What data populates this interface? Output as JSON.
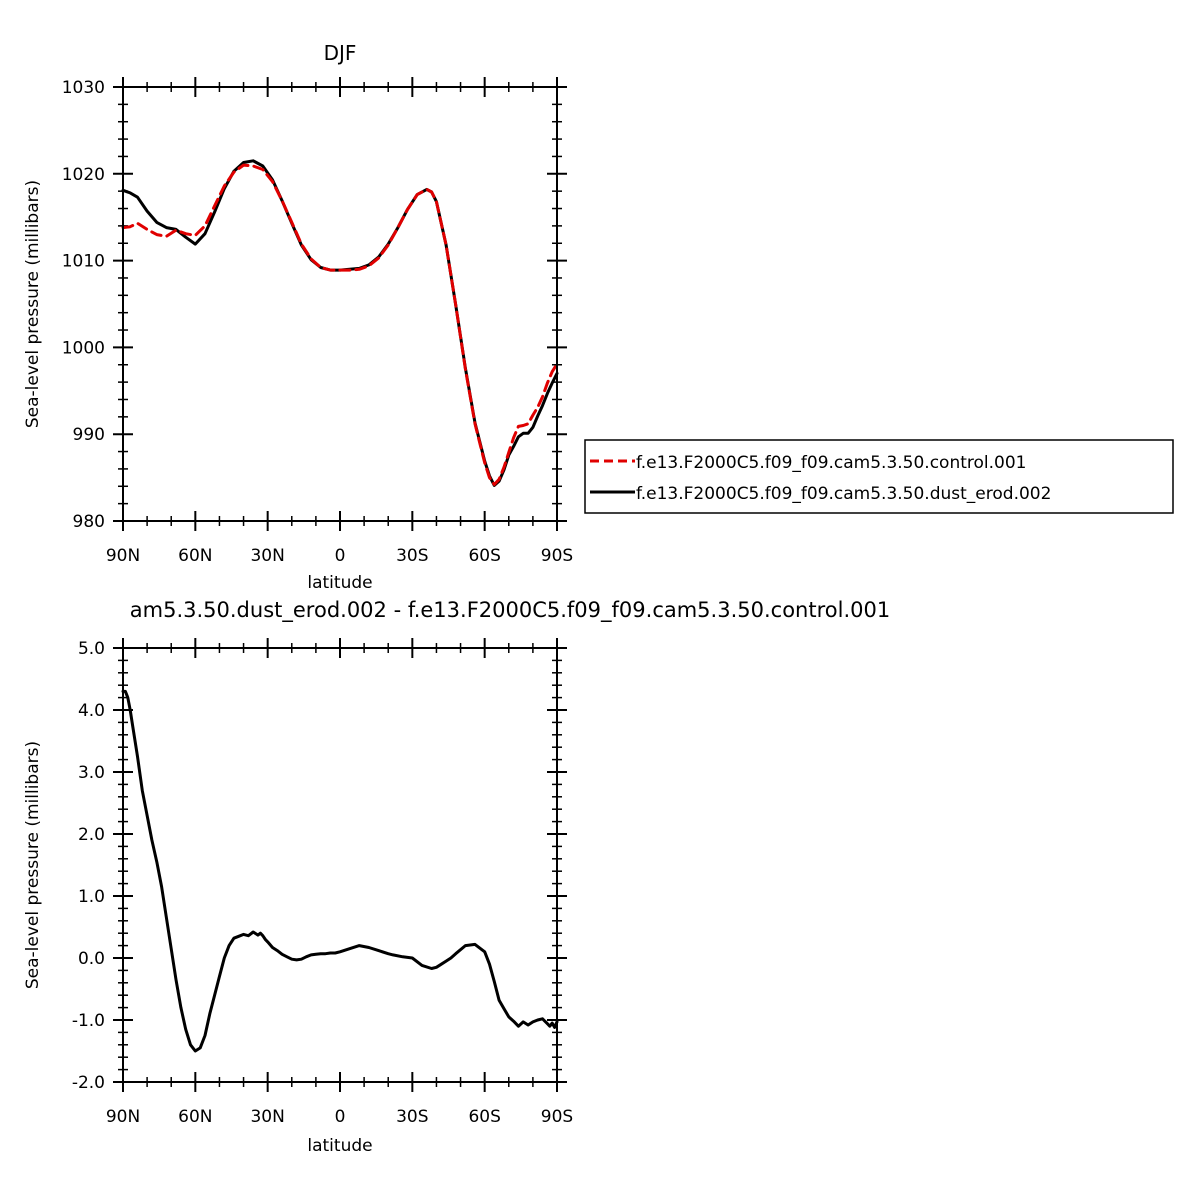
{
  "chart_data": [
    {
      "type": "line",
      "title": "DJF",
      "xlabel": "latitude",
      "ylabel": "Sea-level pressure (millibars)",
      "xlim": [
        90,
        -90
      ],
      "ylim": [
        980,
        1030
      ],
      "yticks": [
        980,
        990,
        1000,
        1010,
        1020,
        1030
      ],
      "ytick_labels": [
        "980",
        "990",
        "1000",
        "1010",
        "1020",
        "1030"
      ],
      "xticks": [
        90,
        60,
        30,
        0,
        -30,
        -60,
        -90
      ],
      "xtick_labels": [
        "90N",
        "60N",
        "30N",
        "0",
        "30S",
        "60S",
        "90S"
      ],
      "legend_position": "right",
      "series": [
        {
          "name": "f.e13.F2000C5.f09_f09.cam5.3.50.control.001",
          "color": "#e00000",
          "dash": "dashed",
          "x": [
            90,
            87,
            84,
            80,
            76,
            72,
            68,
            64,
            60,
            56,
            52,
            48,
            44,
            40,
            36,
            32,
            28,
            24,
            20,
            16,
            12,
            8,
            4,
            0,
            -4,
            -8,
            -12,
            -16,
            -20,
            -24,
            -28,
            -32,
            -36,
            -38,
            -40,
            -44,
            -48,
            -52,
            -56,
            -60,
            -62,
            -64,
            -66,
            -68,
            -70,
            -72,
            -74,
            -76,
            -78,
            -80,
            -82,
            -84,
            -86,
            -88,
            -90
          ],
          "values": [
            1013.8,
            1013.9,
            1014.3,
            1013.6,
            1013.0,
            1012.8,
            1013.5,
            1013.1,
            1012.9,
            1014.0,
            1016.3,
            1018.6,
            1020.2,
            1021.0,
            1020.9,
            1020.5,
            1019.1,
            1016.9,
            1014.4,
            1011.9,
            1010.2,
            1009.2,
            1008.9,
            1008.9,
            1008.9,
            1009.0,
            1009.4,
            1010.3,
            1011.8,
            1013.8,
            1015.9,
            1017.6,
            1018.2,
            1017.9,
            1016.8,
            1011.8,
            1004.9,
            997.5,
            991.2,
            986.7,
            985.0,
            984.2,
            984.8,
            986.2,
            987.9,
            989.6,
            990.9,
            991.0,
            991.2,
            992.2,
            993.1,
            994.3,
            995.9,
            997.2,
            998.1
          ]
        },
        {
          "name": "f.e13.F2000C5.f09_f09.cam5.3.50.dust_erod.002",
          "color": "#000000",
          "dash": "solid",
          "x": [
            90,
            87,
            84,
            80,
            76,
            72,
            68,
            64,
            60,
            56,
            52,
            48,
            44,
            40,
            36,
            32,
            28,
            24,
            20,
            16,
            12,
            8,
            4,
            0,
            -4,
            -8,
            -12,
            -16,
            -20,
            -24,
            -28,
            -32,
            -36,
            -38,
            -40,
            -44,
            -48,
            -52,
            -56,
            -60,
            -62,
            -64,
            -66,
            -68,
            -70,
            -72,
            -74,
            -76,
            -78,
            -80,
            -82,
            -84,
            -86,
            -88,
            -90
          ],
          "values": [
            1018.1,
            1017.8,
            1017.3,
            1015.7,
            1014.4,
            1013.8,
            1013.6,
            1012.7,
            1011.9,
            1013.1,
            1015.6,
            1018.3,
            1020.3,
            1021.3,
            1021.5,
            1020.9,
            1019.3,
            1016.9,
            1014.3,
            1011.8,
            1010.1,
            1009.2,
            1008.9,
            1008.9,
            1009.0,
            1009.1,
            1009.5,
            1010.4,
            1011.9,
            1013.8,
            1015.9,
            1017.6,
            1018.2,
            1017.9,
            1016.8,
            1011.8,
            1004.9,
            997.6,
            991.3,
            986.9,
            985.2,
            984.1,
            984.6,
            985.9,
            987.6,
            988.6,
            989.7,
            990.1,
            990.1,
            990.8,
            992.1,
            993.3,
            994.7,
            995.9,
            997.0
          ]
        }
      ]
    },
    {
      "type": "line",
      "title": "am5.3.50.dust_erod.002 - f.e13.F2000C5.f09_f09.cam5.3.50.control.001",
      "xlabel": "latitude",
      "ylabel": "Sea-level pressure (millibars)",
      "xlim": [
        90,
        -90
      ],
      "ylim": [
        -2.0,
        5.0
      ],
      "yticks": [
        -2.0,
        -1.0,
        0.0,
        1.0,
        2.0,
        3.0,
        4.0,
        5.0
      ],
      "ytick_labels": [
        "-2.0",
        "-1.0",
        "0.0",
        "1.0",
        "2.0",
        "3.0",
        "4.0",
        "5.0"
      ],
      "xticks": [
        90,
        60,
        30,
        0,
        -30,
        -60,
        -90
      ],
      "xtick_labels": [
        "90N",
        "60N",
        "30N",
        "0",
        "30S",
        "60S",
        "90S"
      ],
      "series": [
        {
          "color": "#000000",
          "dash": "solid",
          "x": [
            90,
            89,
            88,
            87,
            86,
            84,
            82,
            80,
            78,
            76,
            74,
            72,
            70,
            68,
            66,
            64,
            62,
            60,
            58,
            56,
            54,
            53,
            52,
            50,
            48,
            46,
            44,
            42,
            40,
            38,
            36,
            34,
            33,
            32,
            31,
            30,
            28,
            26,
            24,
            22,
            20,
            18,
            16,
            14,
            12,
            10,
            8,
            6,
            4,
            2,
            0,
            -4,
            -8,
            -12,
            -16,
            -20,
            -22,
            -26,
            -30,
            -34,
            -38,
            -40,
            -42,
            -44,
            -46,
            -48,
            -52,
            -56,
            -60,
            -62,
            -64,
            -66,
            -68,
            -70,
            -72,
            -74,
            -76,
            -78,
            -80,
            -82,
            -84,
            -86,
            -87,
            -88,
            -89,
            -90
          ],
          "values": [
            4.3,
            4.3,
            4.2,
            4.0,
            3.75,
            3.25,
            2.7,
            2.3,
            1.9,
            1.55,
            1.15,
            0.65,
            0.15,
            -0.35,
            -0.8,
            -1.15,
            -1.4,
            -1.5,
            -1.45,
            -1.25,
            -0.9,
            -0.75,
            -0.6,
            -0.3,
            0.0,
            0.2,
            0.32,
            0.35,
            0.38,
            0.36,
            0.42,
            0.37,
            0.4,
            0.36,
            0.3,
            0.26,
            0.17,
            0.12,
            0.06,
            0.02,
            -0.02,
            -0.03,
            -0.02,
            0.02,
            0.05,
            0.06,
            0.07,
            0.07,
            0.08,
            0.08,
            0.1,
            0.15,
            0.2,
            0.17,
            0.12,
            0.07,
            0.05,
            0.02,
            0.0,
            -0.12,
            -0.17,
            -0.15,
            -0.1,
            -0.05,
            0.0,
            0.07,
            0.2,
            0.22,
            0.1,
            -0.1,
            -0.38,
            -0.68,
            -0.82,
            -0.95,
            -1.02,
            -1.1,
            -1.03,
            -1.08,
            -1.03,
            -1.0,
            -0.98,
            -1.06,
            -1.1,
            -1.05,
            -1.12,
            -1.03
          ]
        }
      ]
    }
  ]
}
